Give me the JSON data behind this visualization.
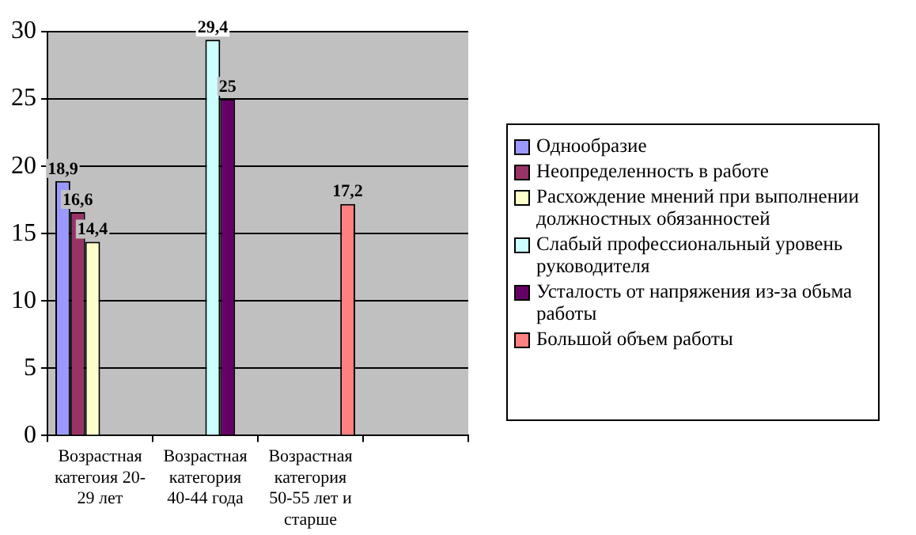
{
  "chart_data": {
    "type": "bar",
    "categories": [
      "Возрастная категоия 20-29 лет",
      "Возрастная категория 40-44 года",
      "Возрастная категория 50-55 лет и старше",
      null
    ],
    "series": [
      {
        "name": "Однообразие",
        "color": "#9999ff",
        "values": [
          18.9,
          null,
          null,
          null
        ],
        "value_labels": [
          "18,9",
          null,
          null,
          null
        ]
      },
      {
        "name": "Неопределенность в работе",
        "color": "#993366",
        "values": [
          16.6,
          null,
          null,
          null
        ],
        "value_labels": [
          "16,6",
          null,
          null,
          null
        ]
      },
      {
        "name": "Расхождение мнений при выполнении должностных обязанностей",
        "color": "#ffffcc",
        "values": [
          14.4,
          null,
          null,
          null
        ],
        "value_labels": [
          "14,4",
          null,
          null,
          null
        ]
      },
      {
        "name": "Слабый профессиональный уровень руководителя",
        "color": "#ccffff",
        "values": [
          null,
          29.4,
          null,
          null
        ],
        "value_labels": [
          null,
          "29,4",
          null,
          null
        ]
      },
      {
        "name": "Усталость от напряжения из-за обьма работы",
        "color": "#660066",
        "values": [
          null,
          25,
          null,
          null
        ],
        "value_labels": [
          null,
          "25",
          null,
          null
        ]
      },
      {
        "name": "Большой объем работы",
        "color": "#ff8080",
        "values": [
          null,
          null,
          17.2,
          null
        ],
        "value_labels": [
          null,
          null,
          "17,2",
          null
        ]
      }
    ],
    "ylim": [
      0,
      30
    ],
    "yticks": [
      0,
      5,
      10,
      15,
      20,
      25,
      30
    ],
    "grid": "y",
    "legend": "right"
  }
}
